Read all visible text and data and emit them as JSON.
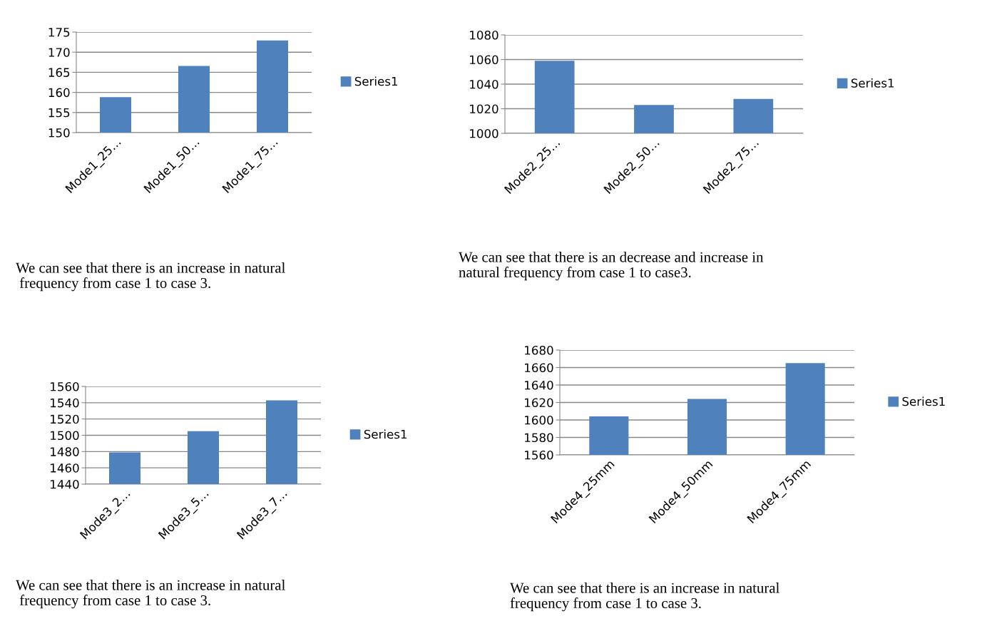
{
  "chart_data": [
    {
      "type": "bar",
      "categories": [
        "Mode1_25…",
        "Mode1_50…",
        "Mode1_75…"
      ],
      "series": [
        {
          "name": "Series1",
          "color": "#4f81bd",
          "values": [
            158.8,
            166.6,
            172.9
          ]
        }
      ],
      "ylim": [
        150,
        175
      ],
      "yticks": [
        150,
        155,
        160,
        165,
        170,
        175
      ],
      "grid": "y",
      "legend": "right",
      "annotations": [
        "We can see that there is an increase in natural\n frequency from case 1 to case 3."
      ]
    },
    {
      "type": "bar",
      "categories": [
        "Mode2_25…",
        "Mode2_50…",
        "Mode2_75…"
      ],
      "series": [
        {
          "name": "Series1",
          "color": "#4f81bd",
          "values": [
            1059,
            1023,
            1028
          ]
        }
      ],
      "ylim": [
        1000,
        1080
      ],
      "yticks": [
        1000,
        1020,
        1040,
        1060,
        1080
      ],
      "grid": "y",
      "legend": "right",
      "annotations": [
        "We can see that there is an decrease and increase in\nnatural frequency from case 1 to case3."
      ]
    },
    {
      "type": "bar",
      "categories": [
        "Mode3_2…",
        "Mode3_5…",
        "Mode3_7…"
      ],
      "series": [
        {
          "name": "Series1",
          "color": "#4f81bd",
          "values": [
            1479,
            1505,
            1543
          ]
        }
      ],
      "ylim": [
        1440,
        1560
      ],
      "yticks": [
        1440,
        1460,
        1480,
        1500,
        1520,
        1540,
        1560
      ],
      "grid": "y",
      "legend": "right",
      "annotations": [
        "We can see that there is an increase in natural\n frequency from case 1 to case 3."
      ]
    },
    {
      "type": "bar",
      "categories": [
        "Mode4_25mm",
        "Mode4_50mm",
        "Mode4_75mm"
      ],
      "series": [
        {
          "name": "Series1",
          "color": "#4f81bd",
          "values": [
            1604,
            1624,
            1665
          ]
        }
      ],
      "ylim": [
        1560,
        1680
      ],
      "yticks": [
        1560,
        1580,
        1600,
        1620,
        1640,
        1660,
        1680
      ],
      "grid": "y",
      "legend": "right",
      "annotations": [
        "We can see that there is an increase in natural\nfrequency from case 1 to case 3."
      ]
    }
  ]
}
